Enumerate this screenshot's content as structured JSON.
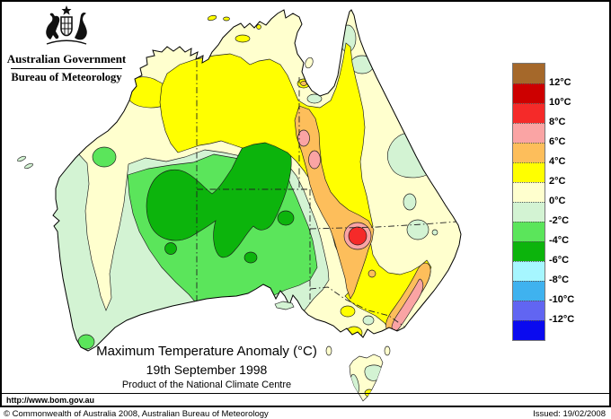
{
  "header": {
    "government": "Australian Government",
    "bureau": "Bureau of Meteorology"
  },
  "map_titles": {
    "title": "Maximum Temperature Anomaly (°C)",
    "date": "19th September 1998",
    "product": "Product of the National Climate Centre"
  },
  "legend": {
    "boundary_labels": [
      "12°C",
      "10°C",
      "8°C",
      "6°C",
      "4°C",
      "2°C",
      "0°C",
      "-2°C",
      "-4°C",
      "-6°C",
      "-8°C",
      "-10°C",
      "-12°C"
    ],
    "band_colors": [
      "#A5682A",
      "#CD0000",
      "#F52A29",
      "#FAA4A4",
      "#FDBE5B",
      "#FFFF00",
      "#FFFFCE",
      "#D3F3D3",
      "#5BE55B",
      "#0CB40C",
      "#A6F6FF",
      "#3FB2EF",
      "#6165F2",
      "#0A0AEF"
    ]
  },
  "map_colors": {
    "sea": "#FFFFFF",
    "coastline": "#000000"
  },
  "footer": {
    "url": "http://www.bom.gov.au",
    "copyright": "© Commonwealth of Australia 2008, Australian Bureau of Meteorology",
    "issued": "Issued: 19/02/2008"
  }
}
